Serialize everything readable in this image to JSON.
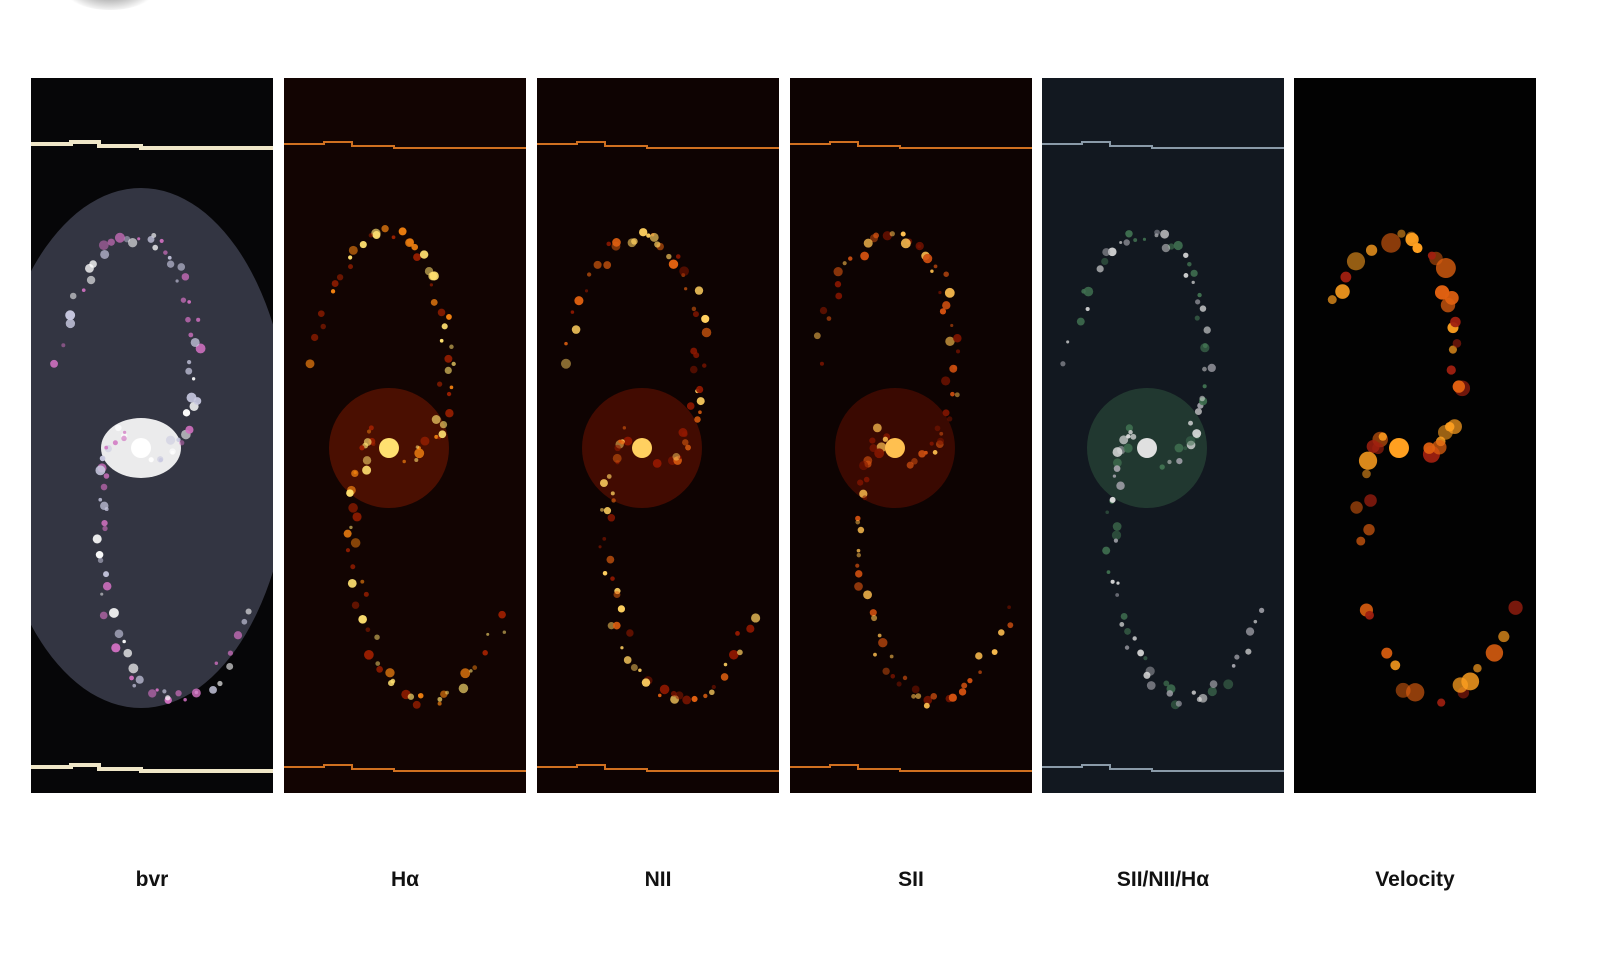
{
  "figure": {
    "panels": [
      {
        "label": "bvr",
        "palette": [
          "#ffffff",
          "#c8c8e0",
          "#d070c0"
        ],
        "background": "#060608"
      },
      {
        "label": "Hα",
        "palette": [
          "#ffe070",
          "#f08010",
          "#a02000"
        ],
        "background": "#120402"
      },
      {
        "label": "NII",
        "palette": [
          "#ffd060",
          "#e06010",
          "#901800"
        ],
        "background": "#0e0302"
      },
      {
        "label": "SII",
        "palette": [
          "#ffc050",
          "#d05010",
          "#801500"
        ],
        "background": "#0d0302"
      },
      {
        "label": "SII/NII/Hα",
        "palette": [
          "#e0e0e0",
          "#a0a0a8",
          "#407050"
        ],
        "background": "#121820"
      },
      {
        "label": "Velocity",
        "palette": [
          "#ffa020",
          "#e06010",
          "#a02010"
        ],
        "background": "#020202"
      }
    ]
  }
}
